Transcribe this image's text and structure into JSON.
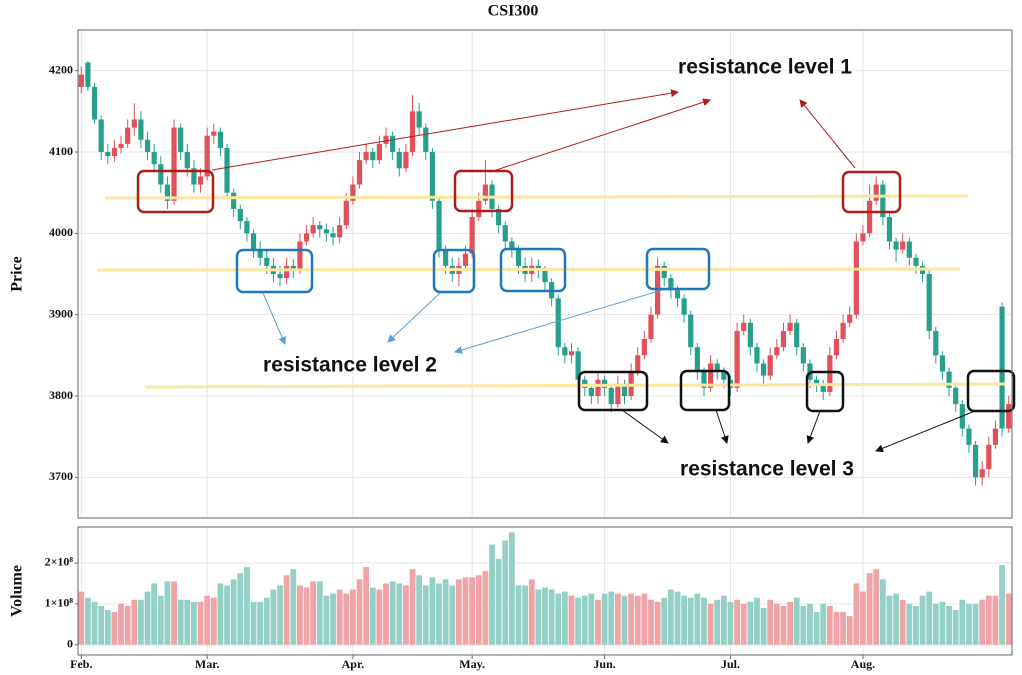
{
  "chart_data": [
    {
      "type": "candlestick",
      "title": "CSI300",
      "ylabel": "Price",
      "up_color": "#e0515b",
      "down_color": "#26a08c",
      "ylim": [
        3650,
        4250
      ],
      "yticks": [
        3700,
        3800,
        3900,
        4000,
        4100,
        4200
      ],
      "grid": true,
      "annotations": [
        {
          "text": "resistance level 1",
          "color": "#b01c1c"
        },
        {
          "text": "resistance level 2",
          "color": "#1f6fb2"
        },
        {
          "text": "resistance level 3",
          "color": "#111111"
        }
      ],
      "open": [
        4180,
        4210,
        4180,
        4140,
        4100,
        4095,
        4105,
        4110,
        4130,
        4140,
        4115,
        4100,
        4085,
        4060,
        4040,
        4130,
        4100,
        4080,
        4060,
        4070,
        4120,
        4125,
        4105,
        4050,
        4030,
        4015,
        4000,
        3980,
        3970,
        3960,
        3950,
        3945,
        3960,
        3955,
        3990,
        4000,
        4010,
        4005,
        4000,
        3995,
        4010,
        4040,
        4060,
        4090,
        4100,
        4090,
        4110,
        4120,
        4100,
        4080,
        4100,
        4150,
        4130,
        4100,
        4040,
        3980,
        3960,
        3950,
        3960,
        3975,
        4020,
        4040,
        4060,
        4030,
        4010,
        3990,
        3980,
        3960,
        3950,
        3960,
        3955,
        3940,
        3920,
        3860,
        3850,
        3855,
        3820,
        3810,
        3800,
        3820,
        3810,
        3790,
        3815,
        3800,
        3830,
        3850,
        3870,
        3900,
        3960,
        3945,
        3930,
        3920,
        3900,
        3860,
        3830,
        3810,
        3840,
        3830,
        3820,
        3810,
        3880,
        3890,
        3860,
        3840,
        3825,
        3850,
        3860,
        3880,
        3890,
        3860,
        3840,
        3820,
        3815,
        3805,
        3850,
        3870,
        3890,
        3900,
        3990,
        4000,
        4040,
        4060,
        4020,
        3990,
        3980,
        3990,
        3970,
        3960,
        3950,
        3880,
        3850,
        3830,
        3810,
        3790,
        3760,
        3740,
        3700,
        3710,
        3740,
        3910,
        3760
      ],
      "high": [
        4205,
        4212,
        4185,
        4145,
        4110,
        4115,
        4120,
        4140,
        4160,
        4150,
        4125,
        4110,
        4095,
        4070,
        4140,
        4135,
        4110,
        4090,
        4080,
        4130,
        4135,
        4130,
        4110,
        4055,
        4035,
        4020,
        4005,
        3990,
        3980,
        3970,
        3960,
        3970,
        3968,
        4000,
        4010,
        4020,
        4015,
        4012,
        4008,
        4020,
        4050,
        4070,
        4100,
        4110,
        4105,
        4120,
        4130,
        4125,
        4105,
        4110,
        4170,
        4160,
        4135,
        4105,
        4045,
        3985,
        3970,
        3970,
        3985,
        4030,
        4050,
        4090,
        4065,
        4035,
        4015,
        3995,
        3985,
        3970,
        3970,
        3968,
        3960,
        3945,
        3925,
        3865,
        3865,
        3860,
        3825,
        3815,
        3830,
        3825,
        3815,
        3825,
        3820,
        3840,
        3860,
        3880,
        3910,
        3970,
        3965,
        3950,
        3935,
        3925,
        3905,
        3865,
        3835,
        3850,
        3845,
        3835,
        3825,
        3890,
        3900,
        3895,
        3865,
        3845,
        3860,
        3870,
        3890,
        3900,
        3895,
        3865,
        3845,
        3825,
        3820,
        3860,
        3880,
        3900,
        3910,
        4000,
        4010,
        4060,
        4070,
        4065,
        4025,
        3995,
        4000,
        3995,
        3975,
        3965,
        3955,
        3885,
        3855,
        3835,
        3815,
        3795,
        3765,
        3745,
        3720,
        3750,
        3770,
        3915,
        3800
      ],
      "low": [
        4172,
        4175,
        4135,
        4090,
        4085,
        4088,
        4098,
        4105,
        4120,
        4105,
        4090,
        4075,
        4050,
        4030,
        4035,
        4090,
        4070,
        4050,
        4050,
        4065,
        4110,
        4095,
        4045,
        4020,
        4005,
        3990,
        3970,
        3960,
        3950,
        3940,
        3935,
        3938,
        3945,
        3950,
        3985,
        3995,
        3995,
        3990,
        3985,
        3988,
        4005,
        4035,
        4055,
        4085,
        4080,
        4085,
        4105,
        4090,
        4070,
        4075,
        4095,
        4120,
        4090,
        4030,
        3970,
        3950,
        3940,
        3935,
        3955,
        3970,
        4015,
        4035,
        4020,
        4000,
        3980,
        3970,
        3950,
        3940,
        3940,
        3945,
        3930,
        3910,
        3850,
        3840,
        3840,
        3810,
        3800,
        3790,
        3790,
        3800,
        3780,
        3785,
        3790,
        3795,
        3825,
        3845,
        3865,
        3895,
        3935,
        3920,
        3910,
        3890,
        3850,
        3820,
        3800,
        3805,
        3820,
        3810,
        3800,
        3805,
        3875,
        3850,
        3830,
        3815,
        3820,
        3845,
        3855,
        3875,
        3850,
        3830,
        3810,
        3805,
        3795,
        3800,
        3845,
        3865,
        3885,
        3895,
        3985,
        3995,
        4035,
        4010,
        3980,
        3965,
        3975,
        3960,
        3950,
        3940,
        3870,
        3840,
        3820,
        3800,
        3780,
        3750,
        3730,
        3690,
        3690,
        3700,
        3735,
        3750,
        3755
      ],
      "close": [
        4195,
        4180,
        4140,
        4100,
        4095,
        4105,
        4110,
        4130,
        4140,
        4115,
        4100,
        4085,
        4060,
        4040,
        4130,
        4100,
        4080,
        4060,
        4070,
        4120,
        4125,
        4105,
        4050,
        4030,
        4015,
        4000,
        3980,
        3970,
        3960,
        3950,
        3945,
        3960,
        3955,
        3990,
        4000,
        4010,
        4005,
        4000,
        3995,
        4010,
        4040,
        4060,
        4090,
        4100,
        4090,
        4110,
        4120,
        4100,
        4080,
        4100,
        4150,
        4130,
        4100,
        4040,
        3980,
        3960,
        3950,
        3960,
        3975,
        4020,
        4040,
        4060,
        4030,
        4010,
        3990,
        3980,
        3960,
        3950,
        3960,
        3955,
        3940,
        3920,
        3860,
        3850,
        3855,
        3820,
        3810,
        3800,
        3820,
        3810,
        3790,
        3815,
        3800,
        3830,
        3850,
        3870,
        3900,
        3960,
        3945,
        3930,
        3920,
        3900,
        3860,
        3830,
        3810,
        3840,
        3830,
        3820,
        3810,
        3880,
        3890,
        3860,
        3840,
        3825,
        3850,
        3860,
        3880,
        3890,
        3860,
        3840,
        3820,
        3815,
        3805,
        3850,
        3870,
        3890,
        3900,
        3990,
        4000,
        4040,
        4060,
        4020,
        3990,
        3980,
        3990,
        3970,
        3960,
        3950,
        3880,
        3850,
        3830,
        3810,
        3790,
        3760,
        3740,
        3700,
        3710,
        3740,
        3760,
        3760,
        3790
      ]
    },
    {
      "type": "bar",
      "ylabel": "Volume",
      "up_color": "#f0a4a8",
      "down_color": "#94d0c6",
      "ylim": [
        -25000000.0,
        288000000.0
      ],
      "yticks": [
        0,
        {
          "value": 100000000.0,
          "label": "1×10⁸"
        },
        {
          "value": 200000000.0,
          "label": "2×10⁸"
        }
      ],
      "grid": true,
      "categories": [
        "Feb.",
        null,
        null,
        null,
        null,
        null,
        null,
        null,
        null,
        null,
        null,
        null,
        null,
        null,
        null,
        null,
        null,
        null,
        null,
        "Mar.",
        null,
        null,
        null,
        null,
        null,
        null,
        null,
        null,
        null,
        null,
        null,
        null,
        null,
        null,
        null,
        null,
        null,
        null,
        null,
        null,
        null,
        "Apr.",
        null,
        null,
        null,
        null,
        null,
        null,
        null,
        null,
        null,
        null,
        null,
        null,
        null,
        null,
        null,
        null,
        null,
        "May.",
        null,
        null,
        null,
        null,
        null,
        null,
        null,
        null,
        null,
        null,
        null,
        null,
        null,
        null,
        null,
        null,
        null,
        null,
        null,
        "Jun.",
        null,
        null,
        null,
        null,
        null,
        null,
        null,
        null,
        null,
        null,
        null,
        null,
        null,
        null,
        null,
        null,
        null,
        null,
        "Jul.",
        null,
        null,
        null,
        null,
        null,
        null,
        null,
        null,
        null,
        null,
        null,
        null,
        null,
        null,
        null,
        null,
        null,
        null,
        null,
        "Aug.",
        null,
        null,
        null,
        null,
        null,
        null,
        null,
        null,
        null,
        null,
        null,
        null,
        null,
        null,
        null,
        null,
        null,
        null,
        null,
        null,
        null,
        null
      ],
      "values": [
        130000000.0,
        115000000.0,
        105000000.0,
        95000000.0,
        85000000.0,
        80000000.0,
        100000000.0,
        95000000.0,
        110000000.0,
        110000000.0,
        130000000.0,
        150000000.0,
        120000000.0,
        155000000.0,
        155000000.0,
        110000000.0,
        110000000.0,
        105000000.0,
        105000000.0,
        120000000.0,
        115000000.0,
        150000000.0,
        145000000.0,
        160000000.0,
        175000000.0,
        190000000.0,
        105000000.0,
        105000000.0,
        115000000.0,
        135000000.0,
        145000000.0,
        170000000.0,
        185000000.0,
        145000000.0,
        140000000.0,
        155000000.0,
        155000000.0,
        120000000.0,
        125000000.0,
        135000000.0,
        125000000.0,
        135000000.0,
        160000000.0,
        190000000.0,
        140000000.0,
        135000000.0,
        150000000.0,
        155000000.0,
        150000000.0,
        145000000.0,
        185000000.0,
        170000000.0,
        145000000.0,
        165000000.0,
        150000000.0,
        160000000.0,
        145000000.0,
        160000000.0,
        165000000.0,
        165000000.0,
        170000000.0,
        180000000.0,
        245000000.0,
        210000000.0,
        255000000.0,
        275000000.0,
        145000000.0,
        145000000.0,
        160000000.0,
        135000000.0,
        140000000.0,
        135000000.0,
        125000000.0,
        130000000.0,
        120000000.0,
        115000000.0,
        120000000.0,
        125000000.0,
        110000000.0,
        125000000.0,
        130000000.0,
        125000000.0,
        120000000.0,
        125000000.0,
        120000000.0,
        125000000.0,
        110000000.0,
        105000000.0,
        115000000.0,
        135000000.0,
        130000000.0,
        120000000.0,
        115000000.0,
        125000000.0,
        115000000.0,
        100000000.0,
        110000000.0,
        120000000.0,
        105000000.0,
        110000000.0,
        100000000.0,
        105000000.0,
        115000000.0,
        90000000.0,
        110000000.0,
        100000000.0,
        95000000.0,
        105000000.0,
        115000000.0,
        95000000.0,
        100000000.0,
        80000000.0,
        100000000.0,
        95000000.0,
        80000000.0,
        80000000.0,
        70000000.0,
        150000000.0,
        130000000.0,
        175000000.0,
        185000000.0,
        160000000.0,
        120000000.0,
        125000000.0,
        110000000.0,
        100000000.0,
        95000000.0,
        120000000.0,
        130000000.0,
        100000000.0,
        105000000.0,
        95000000.0,
        85000000.0,
        110000000.0,
        100000000.0,
        100000000.0,
        110000000.0,
        120000000.0,
        120000000.0,
        195000000.0,
        125000000.0
      ]
    }
  ]
}
